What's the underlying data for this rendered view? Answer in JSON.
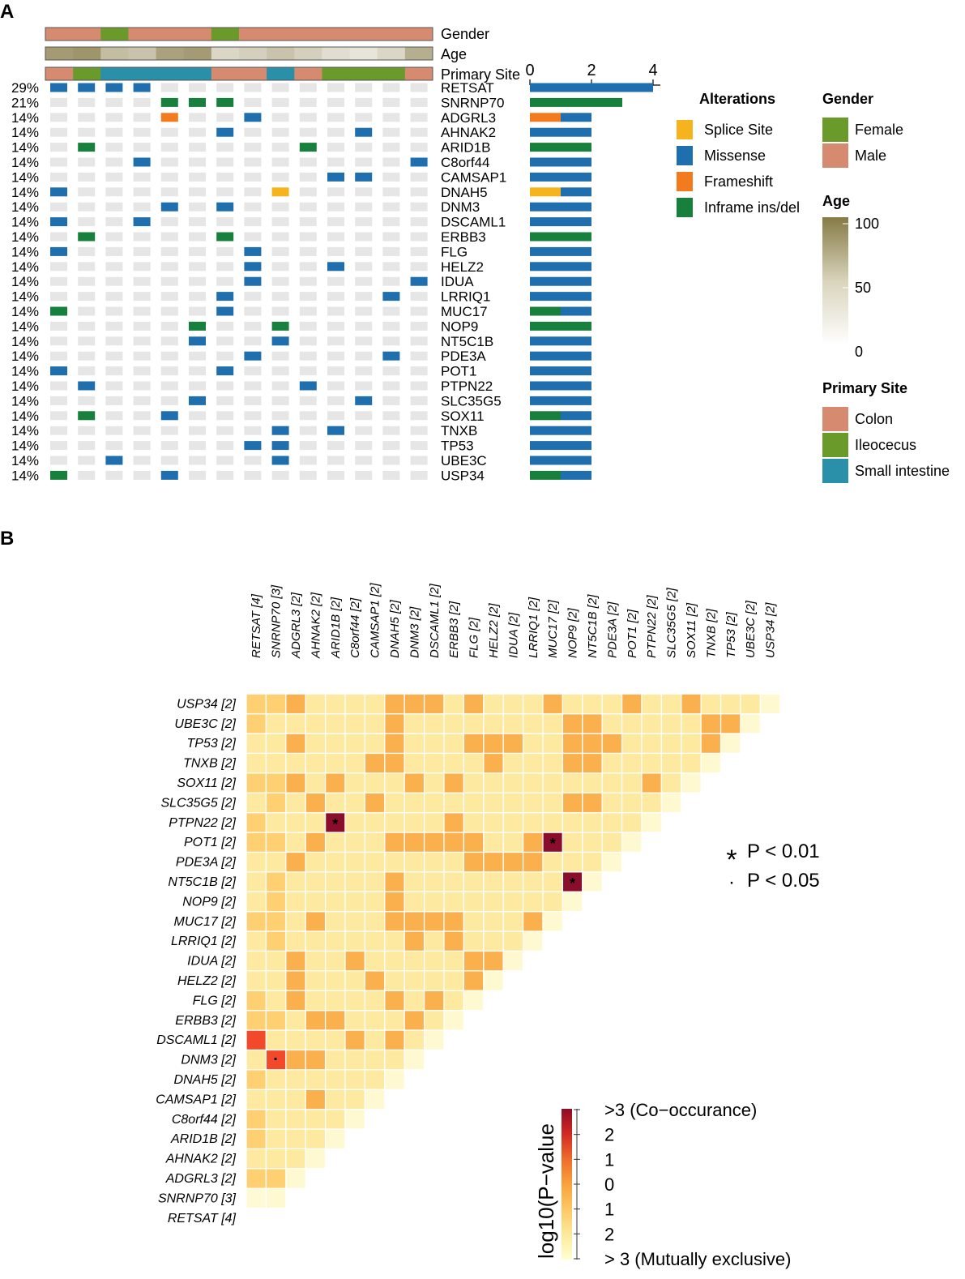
{
  "panel_a": {
    "label": "A",
    "annotation_rows": [
      "Gender",
      "Age",
      "Primary Site"
    ],
    "colors": {
      "splice": "#f5b41e",
      "missense": "#1f6fae",
      "frameshift": "#f27b20",
      "inframe": "#16803c",
      "cell_empty": "#e6e6e6",
      "female": "#6a9a2a",
      "male": "#d68a70",
      "colon": "#d68a70",
      "ileocecus": "#6a9a2a",
      "small_intestine": "#2a8fa8",
      "age_low": "#ffffff",
      "age_high": "#867a45"
    },
    "samples": {
      "gender": [
        "Male",
        "Male",
        "Female",
        "Male",
        "Male",
        "Male",
        "Female",
        "Male",
        "Male",
        "Male",
        "Male",
        "Male",
        "Male",
        "Male"
      ],
      "age": [
        75,
        80,
        50,
        45,
        70,
        75,
        30,
        35,
        45,
        35,
        25,
        20,
        30,
        60
      ],
      "primary_site": [
        "Colon",
        "Ileocecus",
        "Small intestine",
        "Small intestine",
        "Small intestine",
        "Small intestine",
        "Colon",
        "Colon",
        "Small intestine",
        "Colon",
        "Ileocecus",
        "Ileocecus",
        "Ileocecus",
        "Colon"
      ]
    },
    "genes": [
      {
        "name": "RETSAT",
        "pct": "29%",
        "count": 4,
        "bar": {
          "M": 4
        },
        "cells": [
          [
            0,
            "M"
          ],
          [
            1,
            "M"
          ],
          [
            2,
            "M"
          ],
          [
            3,
            "M"
          ]
        ]
      },
      {
        "name": "SNRNP70",
        "pct": "21%",
        "count": 3,
        "bar": {
          "I": 3
        },
        "cells": [
          [
            4,
            "I"
          ],
          [
            5,
            "I"
          ],
          [
            6,
            "I"
          ]
        ]
      },
      {
        "name": "ADGRL3",
        "pct": "14%",
        "count": 2,
        "bar": {
          "F": 1,
          "M": 1
        },
        "cells": [
          [
            4,
            "F"
          ],
          [
            7,
            "M"
          ]
        ]
      },
      {
        "name": "AHNAK2",
        "pct": "14%",
        "count": 2,
        "bar": {
          "M": 2
        },
        "cells": [
          [
            6,
            "M"
          ],
          [
            11,
            "M"
          ]
        ]
      },
      {
        "name": "ARID1B",
        "pct": "14%",
        "count": 2,
        "bar": {
          "I": 2
        },
        "cells": [
          [
            1,
            "I"
          ],
          [
            9,
            "I"
          ]
        ]
      },
      {
        "name": "C8orf44",
        "pct": "14%",
        "count": 2,
        "bar": {
          "M": 2
        },
        "cells": [
          [
            3,
            "M"
          ],
          [
            13,
            "M"
          ]
        ]
      },
      {
        "name": "CAMSAP1",
        "pct": "14%",
        "count": 2,
        "bar": {
          "M": 2
        },
        "cells": [
          [
            10,
            "M"
          ],
          [
            11,
            "M"
          ]
        ]
      },
      {
        "name": "DNAH5",
        "pct": "14%",
        "count": 2,
        "bar": {
          "S": 1,
          "M": 1
        },
        "cells": [
          [
            0,
            "M"
          ],
          [
            8,
            "S"
          ]
        ]
      },
      {
        "name": "DNM3",
        "pct": "14%",
        "count": 2,
        "bar": {
          "M": 2
        },
        "cells": [
          [
            4,
            "M"
          ],
          [
            6,
            "M"
          ]
        ]
      },
      {
        "name": "DSCAML1",
        "pct": "14%",
        "count": 2,
        "bar": {
          "M": 2
        },
        "cells": [
          [
            0,
            "M"
          ],
          [
            3,
            "M"
          ]
        ]
      },
      {
        "name": "ERBB3",
        "pct": "14%",
        "count": 2,
        "bar": {
          "I": 2
        },
        "cells": [
          [
            1,
            "I"
          ],
          [
            6,
            "I"
          ]
        ]
      },
      {
        "name": "FLG",
        "pct": "14%",
        "count": 2,
        "bar": {
          "M": 2
        },
        "cells": [
          [
            0,
            "M"
          ],
          [
            7,
            "M"
          ]
        ]
      },
      {
        "name": "HELZ2",
        "pct": "14%",
        "count": 2,
        "bar": {
          "M": 2
        },
        "cells": [
          [
            7,
            "M"
          ],
          [
            10,
            "M"
          ]
        ]
      },
      {
        "name": "IDUA",
        "pct": "14%",
        "count": 2,
        "bar": {
          "M": 2
        },
        "cells": [
          [
            7,
            "M"
          ],
          [
            13,
            "M"
          ]
        ]
      },
      {
        "name": "LRRIQ1",
        "pct": "14%",
        "count": 2,
        "bar": {
          "M": 2
        },
        "cells": [
          [
            6,
            "M"
          ],
          [
            12,
            "M"
          ]
        ]
      },
      {
        "name": "MUC17",
        "pct": "14%",
        "count": 2,
        "bar": {
          "I": 1,
          "M": 1
        },
        "cells": [
          [
            0,
            "I"
          ],
          [
            6,
            "M"
          ]
        ]
      },
      {
        "name": "NOP9",
        "pct": "14%",
        "count": 2,
        "bar": {
          "I": 2
        },
        "cells": [
          [
            5,
            "I"
          ],
          [
            8,
            "I"
          ]
        ]
      },
      {
        "name": "NT5C1B",
        "pct": "14%",
        "count": 2,
        "bar": {
          "M": 2
        },
        "cells": [
          [
            5,
            "M"
          ],
          [
            8,
            "M"
          ]
        ]
      },
      {
        "name": "PDE3A",
        "pct": "14%",
        "count": 2,
        "bar": {
          "M": 2
        },
        "cells": [
          [
            7,
            "M"
          ],
          [
            12,
            "M"
          ]
        ]
      },
      {
        "name": "POT1",
        "pct": "14%",
        "count": 2,
        "bar": {
          "M": 2
        },
        "cells": [
          [
            0,
            "M"
          ],
          [
            6,
            "M"
          ]
        ]
      },
      {
        "name": "PTPN22",
        "pct": "14%",
        "count": 2,
        "bar": {
          "M": 2
        },
        "cells": [
          [
            1,
            "M"
          ],
          [
            9,
            "M"
          ]
        ]
      },
      {
        "name": "SLC35G5",
        "pct": "14%",
        "count": 2,
        "bar": {
          "M": 2
        },
        "cells": [
          [
            5,
            "M"
          ],
          [
            11,
            "M"
          ]
        ]
      },
      {
        "name": "SOX11",
        "pct": "14%",
        "count": 2,
        "bar": {
          "I": 1,
          "M": 1
        },
        "cells": [
          [
            1,
            "I"
          ],
          [
            4,
            "M"
          ]
        ]
      },
      {
        "name": "TNXB",
        "pct": "14%",
        "count": 2,
        "bar": {
          "M": 2
        },
        "cells": [
          [
            8,
            "M"
          ],
          [
            10,
            "M"
          ]
        ]
      },
      {
        "name": "TP53",
        "pct": "14%",
        "count": 2,
        "bar": {
          "M": 2
        },
        "cells": [
          [
            7,
            "M"
          ],
          [
            8,
            "M"
          ]
        ]
      },
      {
        "name": "UBE3C",
        "pct": "14%",
        "count": 2,
        "bar": {
          "M": 2
        },
        "cells": [
          [
            2,
            "M"
          ],
          [
            8,
            "M"
          ]
        ]
      },
      {
        "name": "USP34",
        "pct": "14%",
        "count": 2,
        "bar": {
          "I": 1,
          "M": 1
        },
        "cells": [
          [
            0,
            "I"
          ],
          [
            4,
            "M"
          ]
        ]
      }
    ],
    "bar_axis": {
      "ticks": [
        0,
        2,
        4
      ],
      "max": 4
    },
    "legends": {
      "alterations": {
        "title": "Alterations",
        "items": [
          {
            "label": "Splice Site",
            "color": "#f5b41e"
          },
          {
            "label": "Missense",
            "color": "#1f6fae"
          },
          {
            "label": "Frameshift",
            "color": "#f27b20"
          },
          {
            "label": "Inframe ins/del",
            "color": "#16803c"
          }
        ]
      },
      "gender": {
        "title": "Gender",
        "items": [
          {
            "label": "Female",
            "color": "#6a9a2a"
          },
          {
            "label": "Male",
            "color": "#d68a70"
          }
        ]
      },
      "age": {
        "title": "Age",
        "ticks": [
          "100",
          "50",
          "0"
        ]
      },
      "primary_site": {
        "title": "Primary Site",
        "items": [
          {
            "label": "Colon",
            "color": "#d68a70"
          },
          {
            "label": "Ileocecus",
            "color": "#6a9a2a"
          },
          {
            "label": "Small intestine",
            "color": "#2a8fa8"
          }
        ]
      }
    }
  },
  "chart_data": {
    "type": "heatmap",
    "title": "",
    "panel_label": "B",
    "gene_labels": [
      "RETSAT [4]",
      "SNRNP70 [3]",
      "ADGRL3 [2]",
      "AHNAK2 [2]",
      "ARID1B [2]",
      "C8orf44 [2]",
      "CAMSAP1 [2]",
      "DNAH5 [2]",
      "DNM3 [2]",
      "DSCAML1 [2]",
      "ERBB3 [2]",
      "FLG [2]",
      "HELZ2 [2]",
      "IDUA [2]",
      "LRRIQ1 [2]",
      "MUC17 [2]",
      "NOP9 [2]",
      "NT5C1B [2]",
      "PDE3A [2]",
      "POT1 [2]",
      "PTPN22 [2]",
      "SLC35G5 [2]",
      "SOX11 [2]",
      "TNXB [2]",
      "TP53 [2]",
      "UBE3C [2]",
      "USP34 [2]"
    ],
    "value_description": "signed -log10(P-value); positive = co-occurrence, negative = mutual exclusivity; 1 = pale, 2 = light orange, 3 = medium orange, 4 = orange-red, 5 = dark red",
    "levels": [
      [],
      [
        0
      ],
      [
        2,
        2
      ],
      [
        1,
        1,
        1
      ],
      [
        2,
        1,
        1,
        1
      ],
      [
        2,
        1,
        1,
        1,
        1
      ],
      [
        1,
        1,
        1,
        3,
        1,
        1
      ],
      [
        2,
        1,
        1,
        1,
        1,
        1,
        1
      ],
      [
        1,
        4,
        3,
        3,
        1,
        1,
        1,
        1
      ],
      [
        4,
        1,
        1,
        1,
        1,
        3,
        1,
        3,
        1
      ],
      [
        2,
        2,
        1,
        3,
        3,
        1,
        1,
        1,
        3,
        1
      ],
      [
        2,
        1,
        3,
        1,
        1,
        1,
        1,
        3,
        1,
        3,
        1
      ],
      [
        1,
        1,
        3,
        1,
        1,
        1,
        3,
        1,
        1,
        1,
        1,
        3
      ],
      [
        1,
        1,
        3,
        1,
        1,
        3,
        1,
        1,
        1,
        1,
        1,
        3,
        3
      ],
      [
        1,
        2,
        1,
        1,
        1,
        1,
        1,
        1,
        3,
        1,
        3,
        1,
        1,
        1
      ],
      [
        2,
        2,
        1,
        3,
        1,
        1,
        1,
        3,
        3,
        3,
        3,
        1,
        1,
        1,
        3
      ],
      [
        1,
        2,
        1,
        1,
        1,
        1,
        1,
        3,
        1,
        1,
        1,
        1,
        1,
        1,
        1,
        1
      ],
      [
        1,
        2,
        1,
        1,
        1,
        1,
        1,
        3,
        1,
        1,
        1,
        1,
        1,
        1,
        1,
        1,
        5
      ],
      [
        1,
        1,
        3,
        1,
        1,
        1,
        1,
        1,
        1,
        1,
        1,
        3,
        3,
        3,
        3,
        1,
        1,
        1
      ],
      [
        2,
        2,
        1,
        3,
        1,
        1,
        1,
        3,
        3,
        3,
        3,
        3,
        1,
        1,
        3,
        5,
        1,
        1,
        1
      ],
      [
        2,
        1,
        1,
        1,
        5,
        1,
        1,
        1,
        1,
        1,
        3,
        1,
        1,
        1,
        1,
        1,
        1,
        1,
        1,
        1
      ],
      [
        1,
        2,
        1,
        3,
        1,
        1,
        3,
        1,
        1,
        1,
        1,
        1,
        1,
        1,
        1,
        1,
        3,
        3,
        1,
        1,
        1
      ],
      [
        2,
        2,
        3,
        1,
        3,
        1,
        1,
        1,
        3,
        1,
        3,
        1,
        1,
        1,
        1,
        1,
        1,
        1,
        1,
        1,
        3,
        1
      ],
      [
        1,
        1,
        1,
        1,
        1,
        1,
        3,
        3,
        1,
        1,
        1,
        1,
        3,
        1,
        1,
        1,
        3,
        3,
        1,
        1,
        1,
        1,
        1
      ],
      [
        1,
        1,
        3,
        1,
        1,
        1,
        1,
        3,
        1,
        1,
        1,
        3,
        3,
        3,
        1,
        1,
        3,
        3,
        3,
        1,
        1,
        1,
        1,
        3
      ],
      [
        2,
        1,
        1,
        1,
        1,
        1,
        1,
        3,
        1,
        1,
        1,
        1,
        1,
        1,
        1,
        1,
        3,
        3,
        1,
        1,
        1,
        1,
        1,
        3,
        3
      ],
      [
        2,
        2,
        3,
        1,
        1,
        1,
        1,
        3,
        3,
        3,
        1,
        3,
        1,
        1,
        1,
        3,
        1,
        1,
        1,
        3,
        1,
        1,
        3,
        1,
        1,
        1
      ]
    ],
    "significance": [
      {
        "row": "DNM3 [2]",
        "col": "SNRNP70 [3]",
        "mark": "·"
      },
      {
        "row": "PTPN22 [2]",
        "col": "ARID1B [2]",
        "mark": "*"
      },
      {
        "row": "POT1 [2]",
        "col": "MUC17 [2]",
        "mark": "*"
      },
      {
        "row": "NT5C1B [2]",
        "col": "NOP9 [2]",
        "mark": "*"
      }
    ],
    "sig_legend": [
      {
        "symbol": "*",
        "label": "P < 0.01"
      },
      {
        "symbol": "·",
        "label": "P < 0.05"
      }
    ],
    "colorbar": {
      "title": "log10(P−value",
      "labels": [
        ">3 (Co−occurance)",
        "2",
        "1",
        "0",
        "1",
        "2",
        "> 3 (Mutually exclusive)"
      ],
      "colors": [
        "#ffffd0",
        "#fce999",
        "#fdc865",
        "#f9a23d",
        "#ef6a2b",
        "#d32a22",
        "#8e0c26"
      ]
    },
    "level_colors": [
      "#fffad6",
      "#fde9a0",
      "#fed071",
      "#fbb04e",
      "#f2492b",
      "#8a0e2c"
    ]
  }
}
